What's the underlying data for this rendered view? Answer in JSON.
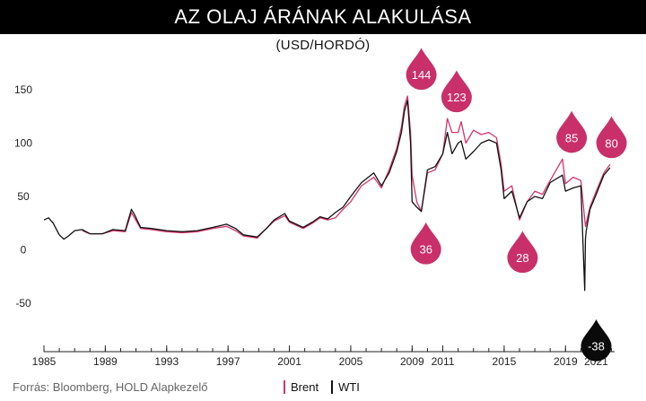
{
  "header": {
    "title": "AZ OLAJ ÁRÁNAK ALAKULÁSA",
    "subtitle": "(USD/HORDÓ)"
  },
  "footer": {
    "source": "Forrás: Bloomberg, HOLD Alapkezelő"
  },
  "colors": {
    "brent": "#d6336c",
    "wti": "#111111",
    "drop_brent": "#c9306a",
    "drop_wti": "#0a0a0a"
  },
  "chart_data": {
    "type": "line",
    "title": "AZ OLAJ ÁRÁNAK ALAKULÁSA",
    "ylabel": "(USD/HORDÓ)",
    "xlabel": "",
    "xlim": [
      1985,
      2022.2
    ],
    "ylim": [
      -90,
      175
    ],
    "x_ticks": [
      1985,
      1989,
      1993,
      1997,
      2001,
      2005,
      2009,
      2011,
      2015,
      2019,
      2021
    ],
    "y_ticks": [
      150,
      100,
      50,
      0,
      -50
    ],
    "grid": false,
    "legend_position": "bottom-center",
    "series": [
      {
        "name": "Brent",
        "x": [
          1987.5,
          1988.0,
          1988.8,
          1989.5,
          1990.3,
          1990.7,
          1990.9,
          1991.3,
          1992.0,
          1993.0,
          1994.0,
          1995.0,
          1996.0,
          1996.9,
          1997.5,
          1998.0,
          1998.9,
          1999.5,
          2000.0,
          2000.7,
          2001.0,
          2001.9,
          2002.5,
          2003.0,
          2003.5,
          2004.0,
          2004.5,
          2005.0,
          2005.7,
          2006.5,
          2007.0,
          2007.5,
          2008.0,
          2008.3,
          2008.5,
          2008.7,
          2008.9,
          2009.0,
          2009.3,
          2009.6,
          2010.0,
          2010.5,
          2011.0,
          2011.3,
          2011.6,
          2012.0,
          2012.2,
          2012.5,
          2013.0,
          2013.5,
          2014.0,
          2014.5,
          2014.8,
          2015.0,
          2015.5,
          2016.0,
          2016.5,
          2017.0,
          2017.5,
          2018.0,
          2018.8,
          2019.0,
          2019.5,
          2020.0,
          2020.3,
          2020.6,
          2021.0,
          2021.5,
          2021.9
        ],
        "values": [
          18,
          15,
          15,
          18,
          17,
          35,
          30,
          20,
          19,
          17,
          16,
          17,
          20,
          22,
          18,
          13,
          11,
          20,
          27,
          32,
          26,
          20,
          25,
          30,
          28,
          30,
          38,
          45,
          60,
          68,
          58,
          75,
          95,
          115,
          135,
          144,
          110,
          70,
          45,
          36,
          72,
          75,
          90,
          123,
          110,
          110,
          120,
          100,
          112,
          108,
          110,
          105,
          80,
          55,
          60,
          28,
          45,
          55,
          52,
          65,
          85,
          62,
          68,
          65,
          22,
          40,
          55,
          72,
          80
        ]
      },
      {
        "name": "WTI",
        "x": [
          1985.0,
          1985.3,
          1985.6,
          1986.0,
          1986.3,
          1986.6,
          1987.0,
          1987.5,
          1988.0,
          1988.8,
          1989.5,
          1990.3,
          1990.7,
          1990.9,
          1991.3,
          1992.0,
          1993.0,
          1994.0,
          1995.0,
          1996.0,
          1996.9,
          1997.5,
          1998.0,
          1998.9,
          1999.5,
          2000.0,
          2000.7,
          2001.0,
          2001.9,
          2002.5,
          2003.0,
          2003.5,
          2004.0,
          2004.5,
          2005.0,
          2005.7,
          2006.5,
          2007.0,
          2007.5,
          2008.0,
          2008.3,
          2008.5,
          2008.7,
          2008.9,
          2009.0,
          2009.3,
          2009.6,
          2010.0,
          2010.5,
          2011.0,
          2011.3,
          2011.6,
          2012.0,
          2012.2,
          2012.5,
          2013.0,
          2013.5,
          2014.0,
          2014.5,
          2014.8,
          2015.0,
          2015.5,
          2016.0,
          2016.5,
          2017.0,
          2017.5,
          2018.0,
          2018.8,
          2019.0,
          2019.5,
          2020.0,
          2020.25,
          2020.3,
          2020.35,
          2020.6,
          2021.0,
          2021.5,
          2021.9
        ],
        "values": [
          28,
          30,
          25,
          14,
          10,
          13,
          18,
          19,
          15,
          15,
          19,
          18,
          38,
          33,
          21,
          20,
          18,
          17,
          18,
          21,
          24,
          20,
          14,
          12,
          20,
          28,
          34,
          27,
          21,
          26,
          31,
          29,
          35,
          40,
          50,
          63,
          72,
          60,
          72,
          92,
          110,
          130,
          140,
          100,
          45,
          40,
          36,
          75,
          78,
          90,
          110,
          90,
          100,
          102,
          85,
          92,
          100,
          103,
          100,
          75,
          48,
          55,
          30,
          45,
          50,
          48,
          63,
          70,
          55,
          58,
          60,
          -38,
          10,
          18,
          38,
          52,
          70,
          77
        ]
      }
    ],
    "annotations": [
      {
        "label": "144",
        "x": 2009.6,
        "value": 144,
        "series": "Brent",
        "kind": "peak"
      },
      {
        "label": "36",
        "x": 2009.9,
        "value": 36,
        "series": "Brent",
        "kind": "trough"
      },
      {
        "label": "123",
        "x": 2011.9,
        "value": 123,
        "series": "Brent",
        "kind": "peak"
      },
      {
        "label": "28",
        "x": 2016.2,
        "value": 28,
        "series": "Brent",
        "kind": "trough"
      },
      {
        "label": "85",
        "x": 2019.4,
        "value": 85,
        "series": "Brent",
        "kind": "peak"
      },
      {
        "label": "80",
        "x": 2022.0,
        "value": 80,
        "series": "Brent",
        "kind": "peak"
      },
      {
        "label": "-38",
        "x": 2021.0,
        "value": -38,
        "series": "WTI",
        "kind": "trough"
      }
    ]
  }
}
